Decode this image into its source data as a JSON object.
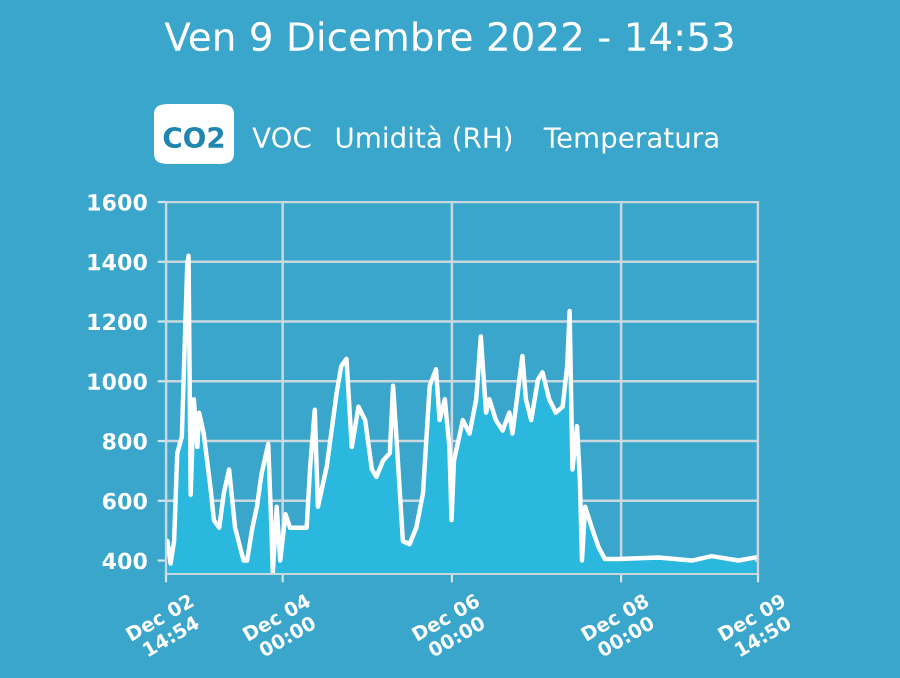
{
  "chart_data": {
    "type": "area",
    "title": "Ven 9 Dicembre 2022 - 14:53",
    "annotations": [
      "CO2",
      "VOC",
      "Umidità (RH)",
      "Temperatura"
    ],
    "x": [
      "2022-12-02T14:54",
      "2022-12-02T15:18",
      "2022-12-02T16:12",
      "2022-12-02T17:12",
      "2022-12-02T18:06",
      "2022-12-02T19:24",
      "2022-12-02T20:54",
      "2022-12-02T21:18",
      "2022-12-02T21:54",
      "2022-12-02T22:48",
      "2022-12-02T23:48",
      "2022-12-03T00:18",
      "2022-12-03T01:36",
      "2022-12-03T03:30",
      "2022-12-03T04:30",
      "2022-12-03T06:00",
      "2022-12-03T07:18",
      "2022-12-03T08:48",
      "2022-12-03T10:30",
      "2022-12-03T12:54",
      "2022-12-03T13:54",
      "2022-12-03T15:24",
      "2022-12-03T16:42",
      "2022-12-03T18:00",
      "2022-12-03T19:54",
      "2022-12-03T20:48",
      "2022-12-03T21:12",
      "2022-12-03T22:18",
      "2022-12-03T23:18",
      "2022-12-04T00:48",
      "2022-12-04T02:06",
      "2022-12-04T06:48",
      "2022-12-04T07:48",
      "2022-12-04T09:06",
      "2022-12-04T10:00",
      "2022-12-04T12:30",
      "2022-12-04T15:18",
      "2022-12-04T16:36",
      "2022-12-04T18:06",
      "2022-12-04T19:36",
      "2022-12-04T21:30",
      "2022-12-04T23:24",
      "2022-12-05T01:18",
      "2022-12-05T02:36",
      "2022-12-05T04:30",
      "2022-12-05T06:24",
      "2022-12-05T07:18",
      "2022-12-05T08:12",
      "2022-12-05T10:06",
      "2022-12-05T12:00",
      "2022-12-05T13:54",
      "2022-12-05T15:48",
      "2022-12-05T17:42",
      "2022-12-05T19:30",
      "2022-12-05T20:30",
      "2022-12-05T22:00",
      "2022-12-05T23:18",
      "2022-12-05T23:54",
      "2022-12-06T00:36",
      "2022-12-06T03:06",
      "2022-12-06T05:00",
      "2022-12-06T06:54",
      "2022-12-06T08:12",
      "2022-12-06T09:42",
      "2022-12-06T10:36",
      "2022-12-06T12:30",
      "2022-12-06T14:24",
      "2022-12-06T16:18",
      "2022-12-06T17:12",
      "2022-12-06T20:00",
      "2022-12-06T21:00",
      "2022-12-06T22:30",
      "2022-12-07T00:24",
      "2022-12-07T01:42",
      "2022-12-07T03:36",
      "2022-12-07T05:30",
      "2022-12-07T07:24",
      "2022-12-07T08:42",
      "2022-12-07T09:24",
      "2022-12-07T10:12",
      "2022-12-07T11:30",
      "2022-12-07T12:18",
      "2022-12-07T12:54",
      "2022-12-07T13:48",
      "2022-12-07T15:42",
      "2022-12-07T17:36",
      "2022-12-07T19:24",
      "2022-12-07T23:12",
      "2022-12-08T10:36",
      "2022-12-08T20:00",
      "2022-12-09T01:42",
      "2022-12-09T09:18",
      "2022-12-09T13:54"
    ],
    "series": [
      {
        "color": "#2bb8de",
        "values": [
          455,
          465,
          390,
          465,
          760,
          815,
          1385,
          1420,
          620,
          940,
          780,
          895,
          825,
          645,
          535,
          510,
          625,
          705,
          510,
          400,
          400,
          510,
          580,
          690,
          790,
          510,
          360,
          580,
          400,
          555,
          510,
          510,
          715,
          905,
          580,
          715,
          960,
          1050,
          1075,
          780,
          915,
          870,
          705,
          680,
          735,
          760,
          985,
          825,
          465,
          455,
          510,
          625,
          985,
          1040,
          870,
          940,
          780,
          535,
          735,
          870,
          825,
          940,
          1150,
          895,
          940,
          870,
          835,
          895,
          825,
          1085,
          940,
          870,
          1005,
          1030,
          940,
          895,
          915,
          1050,
          1235,
          705,
          850,
          670,
          400,
          580,
          510,
          445,
          405,
          405,
          410,
          400,
          415,
          400,
          410
        ]
      }
    ],
    "xlim": [
      "2022-12-02T14:54",
      "2022-12-09T14:50"
    ],
    "xticks": [
      {
        "value": "2022-12-02T14:54",
        "label": "Dec 02\n14:54"
      },
      {
        "value": "2022-12-04T00:00",
        "label": "Dec 04\n00:00"
      },
      {
        "value": "2022-12-06T00:00",
        "label": "Dec 06\n00:00"
      },
      {
        "value": "2022-12-08T00:00",
        "label": "Dec 08\n00:00"
      },
      {
        "value": "2022-12-09T14:50",
        "label": "Dec 09\n14:50"
      }
    ],
    "ylim": [
      355,
      1600
    ],
    "yticks": [
      400,
      600,
      800,
      1000,
      1200,
      1400,
      1600
    ],
    "grid": true
  }
}
